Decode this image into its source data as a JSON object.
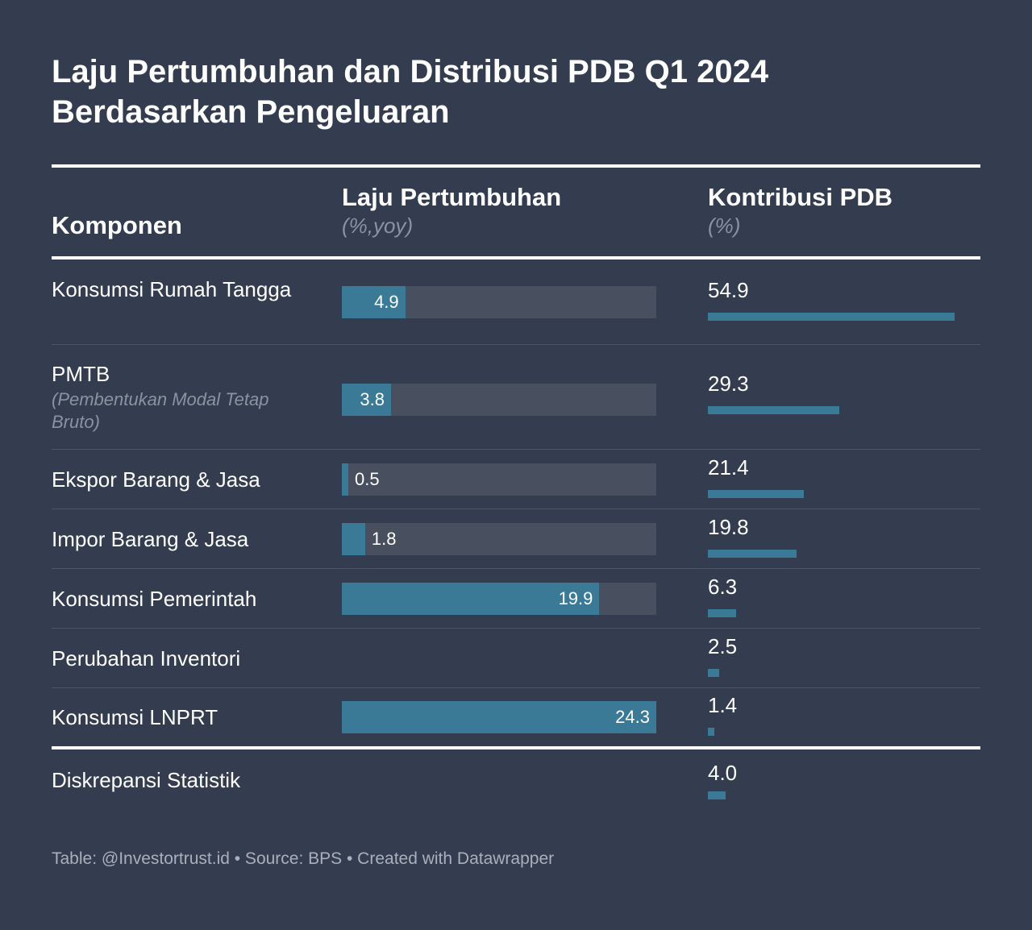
{
  "title_lines": [
    "Laju Pertumbuhan dan Distribusi PDB Q1 2024",
    "Berdasarkan Pengeluaran"
  ],
  "headers": {
    "component": "Komponen",
    "growth": "Laju Pertumbuhan",
    "growth_unit": "(%,yoy)",
    "contribution": "Kontribusi PDB",
    "contribution_unit": "(%)"
  },
  "footer": "Table: @Investortrust.id • Source: BPS • Created with Datawrapper",
  "colors": {
    "background": "#333d4f",
    "bar": "#3a7a96",
    "track": "#48505f",
    "subtext": "#8b93a1"
  },
  "chart_data": {
    "type": "table",
    "title": "Laju Pertumbuhan dan Distribusi PDB Q1 2024 Berdasarkan Pengeluaran",
    "growth_axis_max": 24.3,
    "contribution_axis_max": 54.9,
    "rows": [
      {
        "label": "Konsumsi Rumah Tangga",
        "sublabel": null,
        "growth": 4.9,
        "growth_text": "4.9",
        "contribution": 54.9,
        "contribution_text": "54.9"
      },
      {
        "label": "PMTB",
        "sublabel": "(Pembentukan Modal Tetap Bruto)",
        "growth": 3.8,
        "growth_text": "3.8",
        "contribution": 29.3,
        "contribution_text": "29.3"
      },
      {
        "label": "Ekspor Barang & Jasa",
        "sublabel": null,
        "growth": 0.5,
        "growth_text": "0.5",
        "contribution": 21.4,
        "contribution_text": "21.4"
      },
      {
        "label": "Impor Barang & Jasa",
        "sublabel": null,
        "growth": 1.8,
        "growth_text": "1.8",
        "contribution": 19.8,
        "contribution_text": "19.8"
      },
      {
        "label": "Konsumsi Pemerintah",
        "sublabel": null,
        "growth": 19.9,
        "growth_text": "19.9",
        "contribution": 6.3,
        "contribution_text": "6.3"
      },
      {
        "label": "Perubahan Inventori",
        "sublabel": null,
        "growth": null,
        "growth_text": null,
        "contribution": 2.5,
        "contribution_text": "2.5"
      },
      {
        "label": "Konsumsi LNPRT",
        "sublabel": null,
        "growth": 24.3,
        "growth_text": "24.3",
        "contribution": 1.4,
        "contribution_text": "1.4"
      }
    ],
    "summary_row": {
      "label": "Diskrepansi Statistik",
      "contribution": 4.0,
      "contribution_text": "4.0"
    }
  }
}
